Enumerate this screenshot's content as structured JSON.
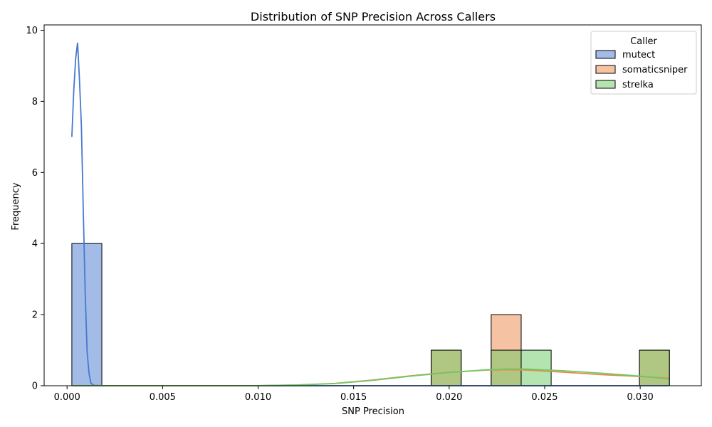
{
  "chart_data": {
    "type": "histogram",
    "title": "Distribution of SNP Precision Across Callers",
    "xlabel": "SNP Precision",
    "ylabel": "Frequency",
    "xlim": [
      -0.0012,
      0.0332
    ],
    "ylim": [
      0,
      10.15
    ],
    "x_ticks": [
      0.0,
      0.005,
      0.01,
      0.015,
      0.02,
      0.025,
      0.03
    ],
    "x_tick_labels": [
      "0.000",
      "0.005",
      "0.010",
      "0.015",
      "0.020",
      "0.025",
      "0.030"
    ],
    "y_ticks": [
      0,
      2,
      4,
      6,
      8,
      10
    ],
    "y_tick_labels": [
      "0",
      "2",
      "4",
      "6",
      "8",
      "10"
    ],
    "grid": false,
    "legend": {
      "title": "Caller",
      "placement": "top-right"
    },
    "series": [
      {
        "name": "mutect",
        "color": "#4878d0",
        "bars": [
          {
            "x0": 0.00025,
            "x1": 0.00182,
            "count": 4
          }
        ],
        "kde": [
          [
            0.00025,
            7.0
          ],
          [
            0.00035,
            8.3
          ],
          [
            0.00045,
            9.2
          ],
          [
            0.00055,
            9.65
          ],
          [
            0.00065,
            8.6
          ],
          [
            0.00075,
            7.3
          ],
          [
            0.00085,
            4.9
          ],
          [
            0.00095,
            2.6
          ],
          [
            0.00105,
            0.95
          ],
          [
            0.00115,
            0.35
          ],
          [
            0.00125,
            0.07
          ],
          [
            0.0014,
            0.01
          ],
          [
            0.002,
            0.0
          ],
          [
            0.01,
            0.0
          ],
          [
            0.0315,
            0.0
          ]
        ]
      },
      {
        "name": "somaticsniper",
        "color": "#ee854a",
        "bars": [
          {
            "x0": 0.01906,
            "x1": 0.02063,
            "count": 1
          },
          {
            "x0": 0.0222,
            "x1": 0.02377,
            "count": 2
          },
          {
            "x0": 0.02996,
            "x1": 0.03153,
            "count": 1
          }
        ],
        "kde": [
          [
            0.00025,
            0.0
          ],
          [
            0.008,
            0.0
          ],
          [
            0.01,
            0.003
          ],
          [
            0.012,
            0.02
          ],
          [
            0.014,
            0.065
          ],
          [
            0.016,
            0.16
          ],
          [
            0.018,
            0.28
          ],
          [
            0.02,
            0.38
          ],
          [
            0.022,
            0.44
          ],
          [
            0.023,
            0.45
          ],
          [
            0.024,
            0.44
          ],
          [
            0.026,
            0.38
          ],
          [
            0.028,
            0.31
          ],
          [
            0.03,
            0.26
          ],
          [
            0.0315,
            0.21
          ]
        ]
      },
      {
        "name": "strelka",
        "color": "#6acc64",
        "bars": [
          {
            "x0": 0.01906,
            "x1": 0.02063,
            "count": 1
          },
          {
            "x0": 0.0222,
            "x1": 0.02377,
            "count": 1
          },
          {
            "x0": 0.02377,
            "x1": 0.02534,
            "count": 1
          },
          {
            "x0": 0.02996,
            "x1": 0.03153,
            "count": 1
          }
        ],
        "kde": [
          [
            0.00025,
            0.0
          ],
          [
            0.008,
            0.0
          ],
          [
            0.01,
            0.003
          ],
          [
            0.012,
            0.02
          ],
          [
            0.014,
            0.06
          ],
          [
            0.016,
            0.15
          ],
          [
            0.018,
            0.27
          ],
          [
            0.02,
            0.37
          ],
          [
            0.022,
            0.45
          ],
          [
            0.023,
            0.47
          ],
          [
            0.024,
            0.47
          ],
          [
            0.026,
            0.42
          ],
          [
            0.028,
            0.35
          ],
          [
            0.03,
            0.27
          ],
          [
            0.0315,
            0.19
          ]
        ]
      }
    ]
  }
}
